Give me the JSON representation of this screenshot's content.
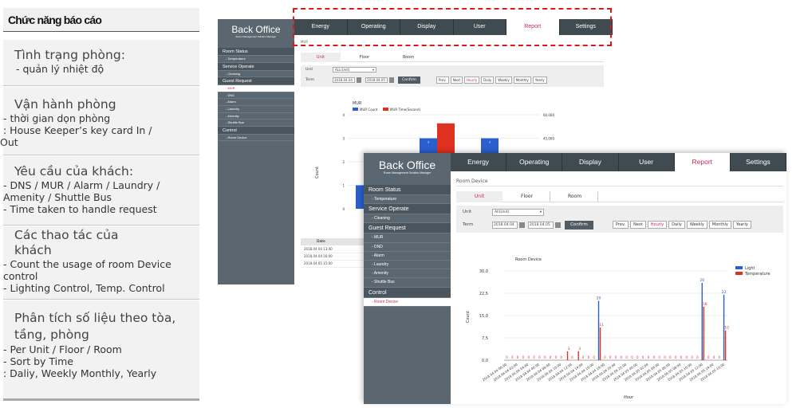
{
  "left_panel": {
    "title": "Chức năng báo cáo",
    "sections": [
      {
        "heading": "Tình trạng phòng:",
        "lines": [
          "- quản lý nhiệt độ"
        ]
      },
      {
        "heading": "Vận hành phòng",
        "lines": [
          "- thời gian dọn phòng",
          "  : House Keeper’s key card In /",
          "Out"
        ]
      },
      {
        "heading": "Yêu cầu của khách:",
        "lines": [
          "- DNS / MUR / Alarm / Laundry /",
          "  Amenity / Shuttle Bus",
          "- Time taken to handle request"
        ]
      },
      {
        "heading": "Các thao tác của\nkhách",
        "lines": [
          "- Count the usage of room Device",
          "  control",
          "- Lighting Control, Temp. Control"
        ]
      },
      {
        "heading": "Phân tích số liệu theo tòa,\ntầng, phòng",
        "lines": [
          "- Per Unit / Floor / Room",
          "- Sort by Time",
          "  :  Daliy, Weekly Monthly, Yearly"
        ]
      }
    ]
  },
  "back_office_1": {
    "logo": "Back Office",
    "logo_sub": "Room Management Solution Manager",
    "nav": [
      "Energy",
      "Operating",
      "Display",
      "User",
      "Report",
      "Settings"
    ],
    "nav_active": "Report",
    "breadcrumb": "MUR",
    "sidebar": [
      {
        "label": "Room Status",
        "group": true
      },
      {
        "label": "- Temperature"
      },
      {
        "label": "Service Operate",
        "group": true
      },
      {
        "label": "- Cleaning"
      },
      {
        "label": "Guest Request",
        "group": true
      },
      {
        "label": "- MUR",
        "active": true
      },
      {
        "label": "- DND"
      },
      {
        "label": "- Alarm"
      },
      {
        "label": "- Laundry"
      },
      {
        "label": "- Amenity"
      },
      {
        "label": "- Shuttle Bus"
      },
      {
        "label": "Control",
        "group": true
      },
      {
        "label": "- Room Device"
      }
    ],
    "tabs": [
      "Unit",
      "Floor",
      "Room"
    ],
    "unit_label": "Unit",
    "unit_value": "ALL(Unit)",
    "term_label": "Term",
    "date_from": "2018.04.04",
    "date_to": "2018.04.05",
    "confirm": "Confirm",
    "period_buttons": [
      "Prev.",
      "Next",
      "Hourly",
      "Daily",
      "Weekly",
      "Monthly",
      "Yearly"
    ],
    "table_header": "Date",
    "table_rows": [
      "2018.04.04 13:00",
      "2018.04.04 16:00",
      "2018.04.05 15:00"
    ]
  },
  "back_office_2": {
    "logo": "Back Office",
    "logo_sub": "Room Management Solution Manager",
    "nav": [
      "Energy",
      "Operating",
      "Display",
      "User",
      "Report",
      "Settings"
    ],
    "nav_active": "Report",
    "breadcrumb": "Room Device",
    "sidebar": [
      {
        "label": "Room Status",
        "group": true
      },
      {
        "label": "- Temperature"
      },
      {
        "label": "Service Operate",
        "group": true
      },
      {
        "label": "- Cleaning"
      },
      {
        "label": "Guest Request",
        "group": true
      },
      {
        "label": "- MUR"
      },
      {
        "label": "- DND"
      },
      {
        "label": "- Alarm"
      },
      {
        "label": "- Laundry"
      },
      {
        "label": "- Amenity"
      },
      {
        "label": "- Shuttle Bus"
      },
      {
        "label": "Control",
        "group": true
      },
      {
        "label": "- Room Device",
        "active": true
      }
    ],
    "tabs": [
      "Unit",
      "Floor",
      "Room"
    ],
    "unit_label": "Unit",
    "unit_value": "All(Unit)",
    "term_label": "Term",
    "date_from": "2018.04.04",
    "date_to": "2018.04.05",
    "confirm": "Confirm",
    "period_buttons": [
      "Prev.",
      "Next",
      "Hourly",
      "Daily",
      "Weekly",
      "Monthly",
      "Yearly"
    ]
  },
  "chart_data": [
    {
      "type": "bar",
      "title": "MUR",
      "series": [
        {
          "name": "MUR Count",
          "color": "#2b5fce",
          "values": [
            1,
            3,
            3
          ]
        },
        {
          "name": "MUR Time(Second)",
          "color": "#e0301e",
          "values": [
            null,
            54502,
            null
          ]
        }
      ],
      "ylabel": "Count",
      "yticks_left": [
        "0",
        "1",
        "2",
        "3",
        "4"
      ],
      "yticks_right": [
        "60,000",
        "45,000"
      ],
      "data_labels": [
        "3",
        "54,502",
        "3"
      ]
    },
    {
      "type": "bar",
      "title": "Room Device",
      "xlabel": "Hour",
      "ylabel": "Count",
      "ylim": [
        0,
        30
      ],
      "yticks": [
        "0,0",
        "7,5",
        "15,0",
        "22,5",
        "30,0"
      ],
      "legend": "top-right",
      "x": [
        "2018.04.04 00:00",
        "2018.04.04 01:00",
        "2018.04.04 02:00",
        "2018.04.04 03:00",
        "2018.04.04 04:00",
        "2018.04.04 05:00",
        "2018.04.04 06:00",
        "2018.04.04 07:00",
        "2018.04.04 08:00",
        "2018.04.04 09:00",
        "2018.04.04 10:00",
        "2018.04.04 11:00",
        "2018.04.04 12:00",
        "2018.04.04 13:00",
        "2018.04.04 14:00",
        "2018.04.04 15:00",
        "2018.04.04 16:00",
        "2018.04.04 17:00",
        "2018.04.04 18:00",
        "2018.04.04 19:00",
        "2018.04.04 20:00",
        "2018.04.04 21:00",
        "2018.04.04 22:00",
        "2018.04.04 23:00",
        "2018.04.05 00:00",
        "2018.04.05 01:00",
        "2018.04.05 02:00",
        "2018.04.05 03:00",
        "2018.04.05 04:00",
        "2018.04.05 05:00",
        "2018.04.05 06:00",
        "2018.04.05 07:00",
        "2018.04.05 08:00",
        "2018.04.05 09:00",
        "2018.04.05 10:00",
        "2018.04.05 11:00",
        "2018.04.05 12:00",
        "2018.04.05 13:00",
        "2018.04.05 14:00",
        "2018.04.05 15:00",
        "2018.04.05 16:00"
      ],
      "x_tick_labels": [
        "2018.04.04 00:00",
        "2018.04.04 02:00",
        "2018.04.04 04:00",
        "2018.04.04 06:00",
        "2018.04.04 08:00",
        "2018.04.04 10:00",
        "2018.04.04 12:00",
        "2018.04.04 14:00",
        "2018.04.04 16:00",
        "2018.04.04 18:00",
        "2018.04.04 20:00",
        "2018.04.04 22:00",
        "2018.04.05 00:00",
        "2018.04.05 02:00",
        "2018.04.05 04:00",
        "2018.04.05 06:00",
        "2018.04.05 08:00",
        "2018.04.05 10:00",
        "2018.04.05 12:00",
        "2018.04.05 14:00",
        "2018.04.05 16:00"
      ],
      "series": [
        {
          "name": "Light",
          "color": "#2b5fce",
          "values": [
            0,
            0,
            0,
            0,
            0,
            0,
            0,
            0,
            0,
            0,
            0,
            0,
            0,
            0,
            0,
            0,
            0,
            20,
            0,
            0,
            0,
            0,
            0,
            0,
            0,
            0,
            0,
            0,
            0,
            0,
            0,
            0,
            0,
            0,
            0,
            0,
            26,
            0,
            0,
            0,
            22
          ]
        },
        {
          "name": "Temperature",
          "color": "#e0301e",
          "values": [
            0,
            0,
            0,
            0,
            0,
            0,
            0,
            0,
            0,
            0,
            0,
            3,
            0,
            3,
            0,
            0,
            0,
            11,
            0,
            0,
            0,
            0,
            0,
            0,
            0,
            0,
            0,
            0,
            0,
            0,
            0,
            0,
            0,
            0,
            0,
            0,
            18,
            0,
            0,
            0,
            10
          ]
        }
      ]
    }
  ]
}
